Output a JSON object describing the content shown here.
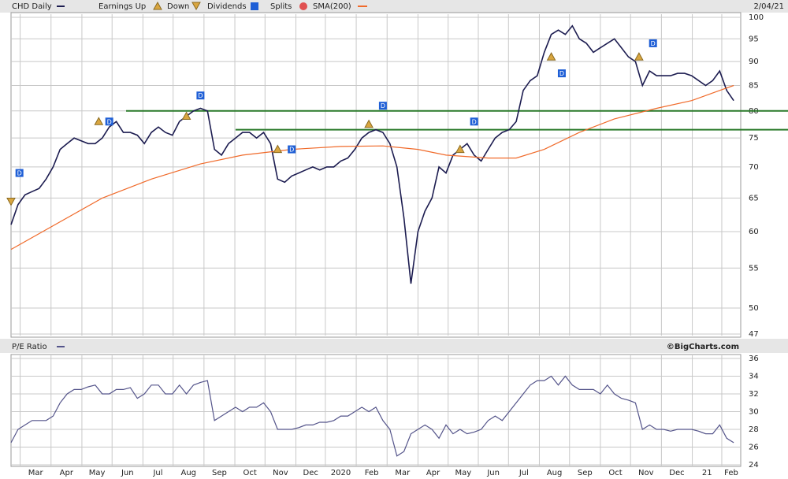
{
  "chart_data": [
    {
      "type": "line",
      "log_y": true,
      "grid": true,
      "date": "2/04/21",
      "legend": [
        "Earnings Up",
        "Down",
        "Dividends",
        "Splits"
      ],
      "xlim": [
        0,
        104
      ],
      "ylim": [
        47,
        100
      ],
      "yticks": [
        47,
        50,
        55,
        60,
        65,
        70,
        75,
        80,
        85,
        90,
        95,
        100
      ],
      "xticks": [
        {
          "value": 1.3,
          "label": "Mar"
        },
        {
          "value": 5.7,
          "label": "Apr"
        },
        {
          "value": 10.1,
          "label": "May"
        },
        {
          "value": 14.4,
          "label": "Jun"
        },
        {
          "value": 18.8,
          "label": "Jul"
        },
        {
          "value": 23.1,
          "label": "Aug"
        },
        {
          "value": 27.5,
          "label": "Sep"
        },
        {
          "value": 31.9,
          "label": "Oct"
        },
        {
          "value": 36.2,
          "label": "Nov"
        },
        {
          "value": 40.6,
          "label": "Dec"
        },
        {
          "value": 44.8,
          "label": "2020"
        },
        {
          "value": 49.2,
          "label": "Feb"
        },
        {
          "value": 53.6,
          "label": "Mar"
        },
        {
          "value": 58.0,
          "label": "Apr"
        },
        {
          "value": 62.3,
          "label": "May"
        },
        {
          "value": 66.6,
          "label": "Jun"
        },
        {
          "value": 70.9,
          "label": "Jul"
        },
        {
          "value": 75.3,
          "label": "Aug"
        },
        {
          "value": 79.6,
          "label": "Sep"
        },
        {
          "value": 84.0,
          "label": "Oct"
        },
        {
          "value": 88.3,
          "label": "Nov"
        },
        {
          "value": 92.7,
          "label": "Dec"
        },
        {
          "value": 97.1,
          "label": "21"
        },
        {
          "value": 101.3,
          "label": "Feb"
        }
      ],
      "series": [
        {
          "name": "CHD Daily",
          "color": "#1c1c50",
          "x": [
            0,
            1,
            2,
            3,
            4,
            5,
            6,
            7,
            8,
            9,
            10,
            11,
            12,
            13,
            14,
            15,
            16,
            17,
            18,
            19,
            20,
            21,
            22,
            23,
            24,
            25,
            26,
            27,
            28,
            29,
            30,
            31,
            32,
            33,
            34,
            35,
            36,
            37,
            38,
            39,
            40,
            41,
            42,
            43,
            44,
            45,
            46,
            47,
            48,
            49,
            50,
            51,
            52,
            53,
            54,
            55,
            56,
            57,
            58,
            59,
            60,
            61,
            62,
            63,
            64,
            65,
            66,
            67,
            68,
            69,
            70,
            71,
            72,
            73,
            74,
            75,
            76,
            77,
            78,
            79,
            80,
            81,
            82,
            83,
            84,
            85,
            86,
            87,
            88,
            89,
            90,
            91,
            92,
            93,
            94,
            95,
            96,
            97,
            98,
            99,
            100,
            101,
            102,
            103
          ],
          "values": [
            61,
            64,
            65.5,
            66,
            66.5,
            68,
            70,
            73,
            74,
            75,
            74.5,
            74,
            74,
            75,
            77,
            78,
            76,
            76,
            75.5,
            74,
            76,
            77,
            76,
            75.5,
            78,
            79,
            80,
            80.5,
            80,
            73,
            72,
            74,
            75,
            76,
            76,
            75,
            76,
            74,
            68,
            67.5,
            68.5,
            69,
            69.5,
            70,
            69.5,
            70,
            70,
            71,
            71.5,
            73,
            75,
            76,
            76.5,
            76,
            74,
            70,
            62,
            53,
            60,
            63,
            65,
            70,
            69,
            72,
            73,
            74,
            72,
            71,
            73,
            75,
            76,
            76.5,
            78,
            84,
            86,
            87,
            92,
            96,
            97,
            96,
            98,
            95,
            94,
            92,
            93,
            94,
            95,
            93,
            91,
            90,
            85,
            88,
            87,
            87,
            87,
            87.5,
            87.5,
            87,
            86,
            85,
            86,
            88,
            84,
            82
          ]
        },
        {
          "name": "SMA(200)",
          "color": "#f06a2a",
          "x": [
            0,
            13,
            20,
            27,
            33,
            40,
            47,
            53,
            58,
            62,
            68,
            72,
            76,
            81,
            86,
            92,
            97,
            101,
            103
          ],
          "values": [
            57.5,
            65,
            68,
            70.5,
            72,
            73,
            73.5,
            73.6,
            73,
            72,
            71.5,
            71.5,
            73,
            76,
            78.5,
            80.5,
            82,
            84,
            85
          ]
        }
      ],
      "hlines": [
        {
          "value": 80,
          "from": 16.4,
          "color": "#2a7a2a"
        },
        {
          "value": 76.5,
          "from": 32,
          "color": "#2a7a2a"
        }
      ],
      "events": [
        {
          "kind": "down",
          "x": 0,
          "y": 64.5
        },
        {
          "kind": "dividend",
          "label": "D",
          "x": 1.2,
          "y": 69
        },
        {
          "kind": "up",
          "x": 12.5,
          "y": 78
        },
        {
          "kind": "dividend",
          "label": "D",
          "x": 14,
          "y": 78
        },
        {
          "kind": "up",
          "x": 25,
          "y": 79
        },
        {
          "kind": "dividend",
          "label": "D",
          "x": 27,
          "y": 83
        },
        {
          "kind": "up",
          "x": 38,
          "y": 73
        },
        {
          "kind": "dividend",
          "label": "D",
          "x": 40,
          "y": 73
        },
        {
          "kind": "up",
          "x": 51,
          "y": 77.5
        },
        {
          "kind": "dividend",
          "label": "D",
          "x": 53,
          "y": 81
        },
        {
          "kind": "up",
          "x": 64,
          "y": 73
        },
        {
          "kind": "dividend",
          "label": "D",
          "x": 66,
          "y": 78
        },
        {
          "kind": "up",
          "x": 77,
          "y": 91
        },
        {
          "kind": "dividend",
          "label": "D",
          "x": 78.5,
          "y": 87.5
        },
        {
          "kind": "up",
          "x": 89.5,
          "y": 91
        },
        {
          "kind": "dividend",
          "label": "D",
          "x": 91.5,
          "y": 94
        }
      ]
    },
    {
      "type": "line",
      "grid": true,
      "credit": "©BigCharts.com",
      "xlim": [
        0,
        104
      ],
      "ylim": [
        24,
        36
      ],
      "yticks": [
        24,
        26,
        28,
        30,
        32,
        34,
        36
      ],
      "series": [
        {
          "name": "P/E Ratio",
          "color": "#54548a",
          "x": [
            0,
            1,
            2,
            3,
            4,
            5,
            6,
            7,
            8,
            9,
            10,
            11,
            12,
            13,
            14,
            15,
            16,
            17,
            18,
            19,
            20,
            21,
            22,
            23,
            24,
            25,
            26,
            27,
            28,
            29,
            30,
            31,
            32,
            33,
            34,
            35,
            36,
            37,
            38,
            39,
            40,
            41,
            42,
            43,
            44,
            45,
            46,
            47,
            48,
            49,
            50,
            51,
            52,
            53,
            54,
            55,
            56,
            57,
            58,
            59,
            60,
            61,
            62,
            63,
            64,
            65,
            66,
            67,
            68,
            69,
            70,
            71,
            72,
            73,
            74,
            75,
            76,
            77,
            78,
            79,
            80,
            81,
            82,
            83,
            84,
            85,
            86,
            87,
            88,
            89,
            90,
            91,
            92,
            93,
            94,
            95,
            96,
            97,
            98,
            99,
            100,
            101,
            102,
            103
          ],
          "values": [
            26.5,
            28,
            28.5,
            29,
            29,
            29,
            29.5,
            31,
            32,
            32.5,
            32.5,
            32.8,
            33,
            32,
            32,
            32.5,
            32.5,
            32.7,
            31.5,
            32,
            33,
            33,
            32,
            32,
            33,
            32,
            33,
            33.3,
            33.5,
            29,
            29.5,
            30,
            30.5,
            30,
            30.5,
            30.5,
            31,
            30,
            28,
            28,
            28,
            28.2,
            28.5,
            28.5,
            28.8,
            28.8,
            29,
            29.5,
            29.5,
            30,
            30.5,
            30,
            30.5,
            29,
            28,
            25,
            25.5,
            27.5,
            28,
            28.5,
            28,
            27,
            28.5,
            27.5,
            28,
            27.5,
            27.7,
            28,
            29,
            29.5,
            29,
            30,
            31,
            32,
            33,
            33.5,
            33.5,
            34,
            33,
            34,
            33,
            32.5,
            32.5,
            32.5,
            32,
            33,
            32,
            31.5,
            31.3,
            31,
            28,
            28.5,
            28,
            28,
            27.8,
            28,
            28,
            28,
            27.8,
            27.5,
            27.5,
            28.5,
            27,
            26.5
          ]
        }
      ]
    }
  ]
}
